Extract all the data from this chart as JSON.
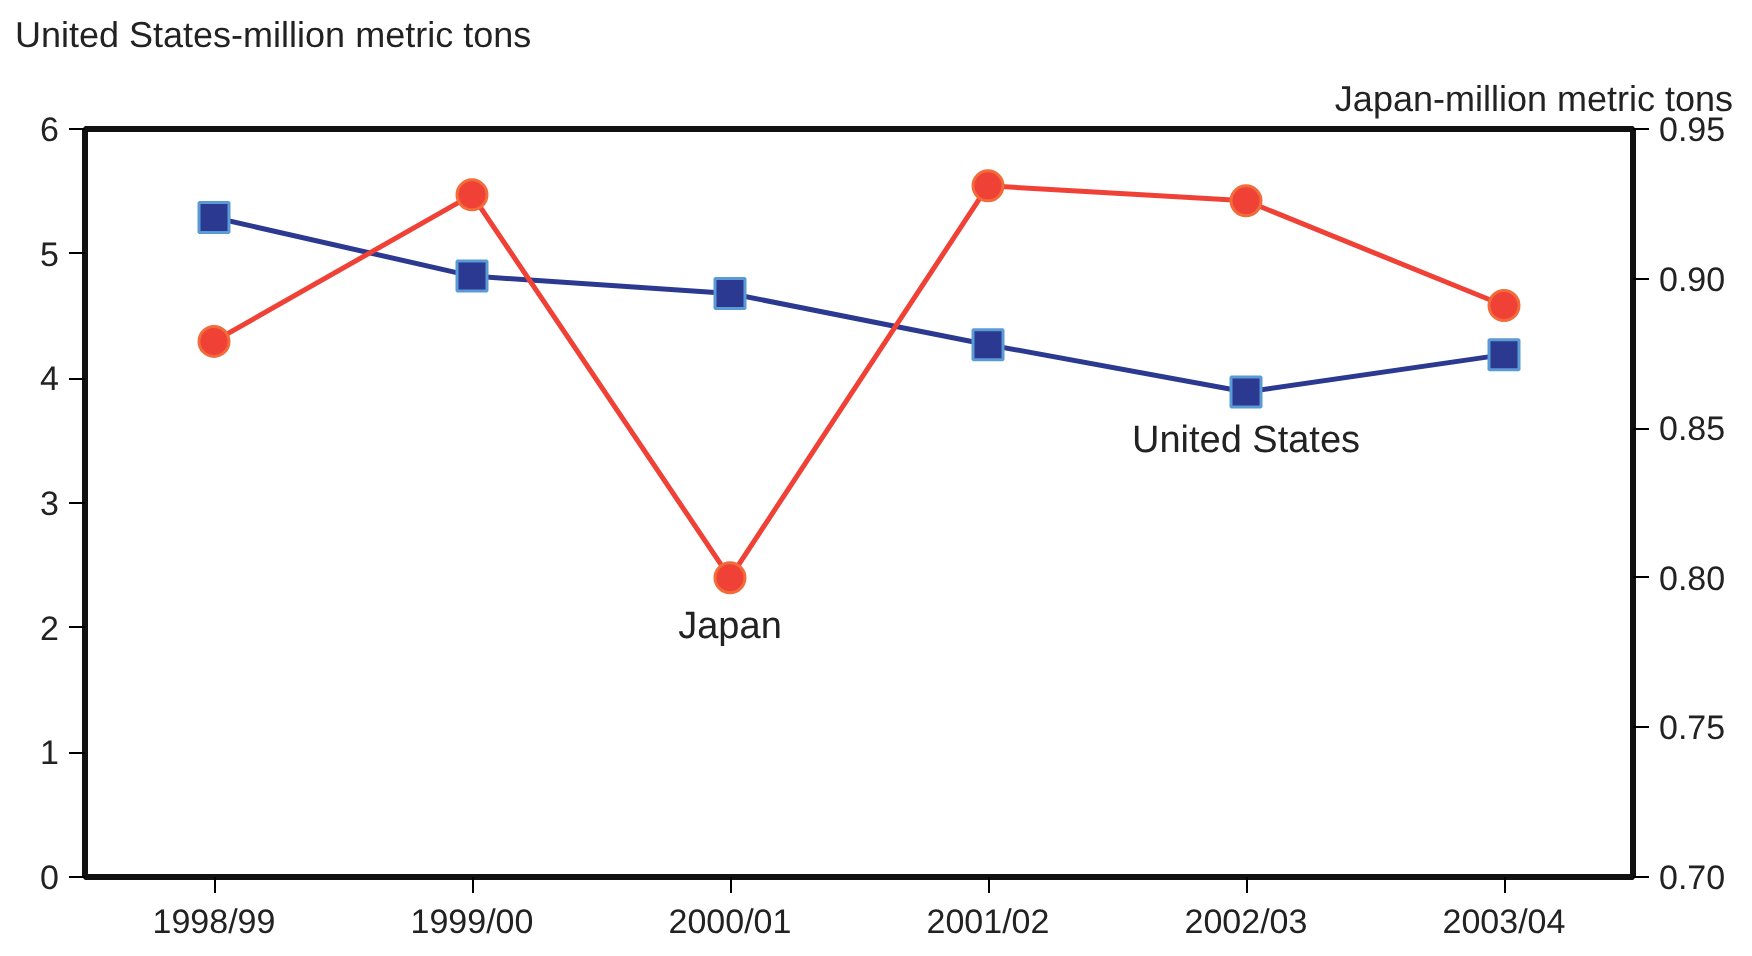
{
  "chart_data": {
    "type": "line",
    "ylabel": "United States-million metric tons",
    "y2label": "Japan-million metric tons",
    "categories": [
      "1998/99",
      "1999/00",
      "2000/01",
      "2001/02",
      "2002/03",
      "2003/04"
    ],
    "ylim": [
      0,
      6
    ],
    "yticks": [
      0,
      1,
      2,
      3,
      4,
      5,
      6
    ],
    "y2lim": [
      0.7,
      0.95
    ],
    "y2ticks": [
      {
        "value": 0.7,
        "label": "0.70"
      },
      0.75,
      {
        "value": 0.8,
        "label": "0.80"
      },
      0.85,
      {
        "value": 0.9,
        "label": "0.90"
      },
      0.95
    ],
    "grid": false,
    "series": [
      {
        "name": "United States",
        "color": "#2b3990",
        "marker": "square",
        "values": [
          5.29,
          4.82,
          4.68,
          4.27,
          3.89,
          4.19
        ]
      },
      {
        "name": "Japan",
        "color": "#ef4136",
        "marker": "circle",
        "axis": "y2",
        "values": [
          0.879,
          0.928,
          0.8,
          0.931,
          0.926,
          0.891
        ]
      }
    ]
  }
}
